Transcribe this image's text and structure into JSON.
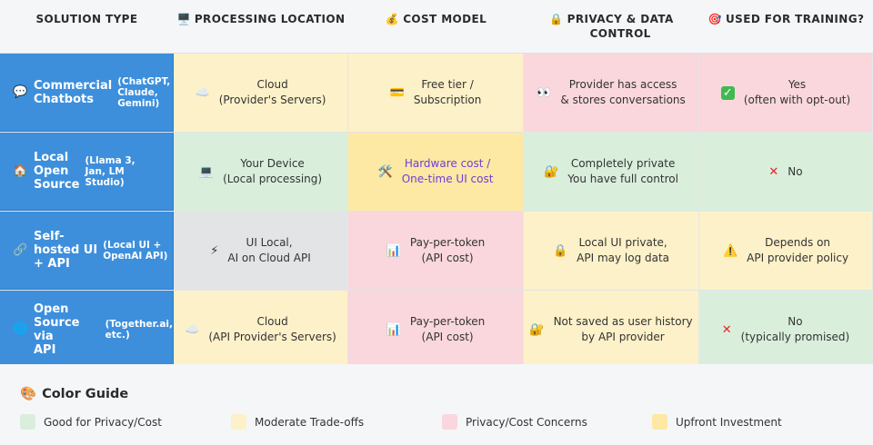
{
  "headers": [
    {
      "icon": "",
      "label": "SOLUTION TYPE"
    },
    {
      "icon": "🖥️",
      "label": "PROCESSING LOCATION"
    },
    {
      "icon": "💰",
      "label": "COST MODEL"
    },
    {
      "icon": "🔒",
      "label": "PRIVACY & DATA\nCONTROL"
    },
    {
      "icon": "🎯",
      "label": "USED FOR TRAINING?"
    }
  ],
  "rows": [
    {
      "icon": "💬",
      "name": "Commercial\nChatbots",
      "sub": "(ChatGPT,\nClaude,\nGemini)",
      "cells": [
        {
          "icon": "☁️",
          "text": "Cloud\n(Provider's Servers)",
          "color": "yellow"
        },
        {
          "icon": "💳",
          "text": "Free tier /\nSubscription",
          "color": "yellow"
        },
        {
          "icon": "👀",
          "text": "Provider has access\n& stores conversations",
          "color": "red"
        },
        {
          "icon": "✓",
          "text": "Yes\n(often with opt-out)",
          "color": "red"
        }
      ]
    },
    {
      "icon": "🏠",
      "name": "Local\nOpen\nSource",
      "sub": "(Llama 3,\nJan, LM\nStudio)",
      "cells": [
        {
          "icon": "💻",
          "text": "Your Device\n(Local processing)",
          "color": "green"
        },
        {
          "icon": "🛠️",
          "text": "Hardware cost /\nOne-time UI cost",
          "color": "gold"
        },
        {
          "icon": "🔐",
          "text": "Completely private\nYou have full control",
          "color": "green"
        },
        {
          "icon": "✕",
          "text": "No",
          "color": "green"
        }
      ]
    },
    {
      "icon": "🔗",
      "name": "Self-\nhosted UI\n+ API",
      "sub": "(Local UI +\nOpenAI API)",
      "cells": [
        {
          "icon": "⚡",
          "text": "UI Local,\nAI on Cloud API",
          "color": "grey"
        },
        {
          "icon": "📊",
          "text": "Pay-per-token\n(API cost)",
          "color": "red"
        },
        {
          "icon": "🔒",
          "text": "Local UI private,\nAPI may log data",
          "color": "yellow"
        },
        {
          "icon": "⚠️",
          "text": "Depends on\nAPI provider policy",
          "color": "yellow"
        }
      ]
    },
    {
      "icon": "🌐",
      "name": "Open\nSource via\nAPI",
      "sub": "(Together.ai,\netc.)",
      "cells": [
        {
          "icon": "☁️",
          "text": "Cloud\n(API Provider's Servers)",
          "color": "yellow"
        },
        {
          "icon": "📊",
          "text": "Pay-per-token\n(API cost)",
          "color": "red"
        },
        {
          "icon": "🔐",
          "text": "Not saved as user history\nby API provider",
          "color": "yellow"
        },
        {
          "icon": "✕",
          "text": "No\n(typically promised)",
          "color": "green"
        }
      ]
    }
  ],
  "guide": {
    "icon": "🎨",
    "title": "Color Guide",
    "items": [
      {
        "label": "Good for Privacy/Cost",
        "color": "#d9efdc"
      },
      {
        "label": "Moderate Trade-offs",
        "color": "#fdf1c9"
      },
      {
        "label": "Privacy/Cost Concerns",
        "color": "#f9d7dc"
      },
      {
        "label": "Upfront Investment",
        "color": "#fde8a4"
      }
    ]
  }
}
